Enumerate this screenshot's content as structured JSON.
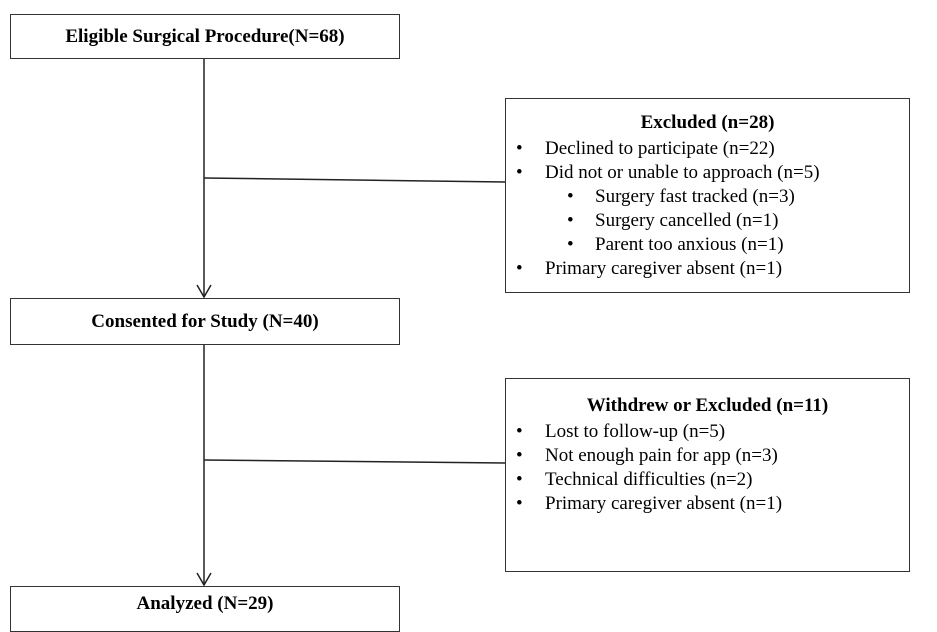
{
  "nodes": [
    {
      "label": "Eligible Surgical Procedure(N=68)"
    },
    {
      "label": "Consented for Study (N=40)"
    },
    {
      "label": "Analyzed (N=29)"
    }
  ],
  "side_boxes": [
    {
      "title": "Excluded (n=28)",
      "items": [
        {
          "text": "Declined to participate (n=22)"
        },
        {
          "text": "Did not or unable to approach (n=5)",
          "subitems": [
            "Surgery fast tracked (n=3)",
            "Surgery cancelled (n=1)",
            "Parent too anxious (n=1)"
          ]
        },
        {
          "text": "Primary caregiver absent (n=1)"
        }
      ]
    },
    {
      "title": "Withdrew or Excluded (n=11)",
      "items": [
        {
          "text": "Lost to follow-up (n=5)"
        },
        {
          "text": "Not enough pain for app (n=3)"
        },
        {
          "text": "Technical difficulties (n=2)"
        },
        {
          "text": "Primary caregiver absent (n=1)"
        }
      ]
    }
  ]
}
